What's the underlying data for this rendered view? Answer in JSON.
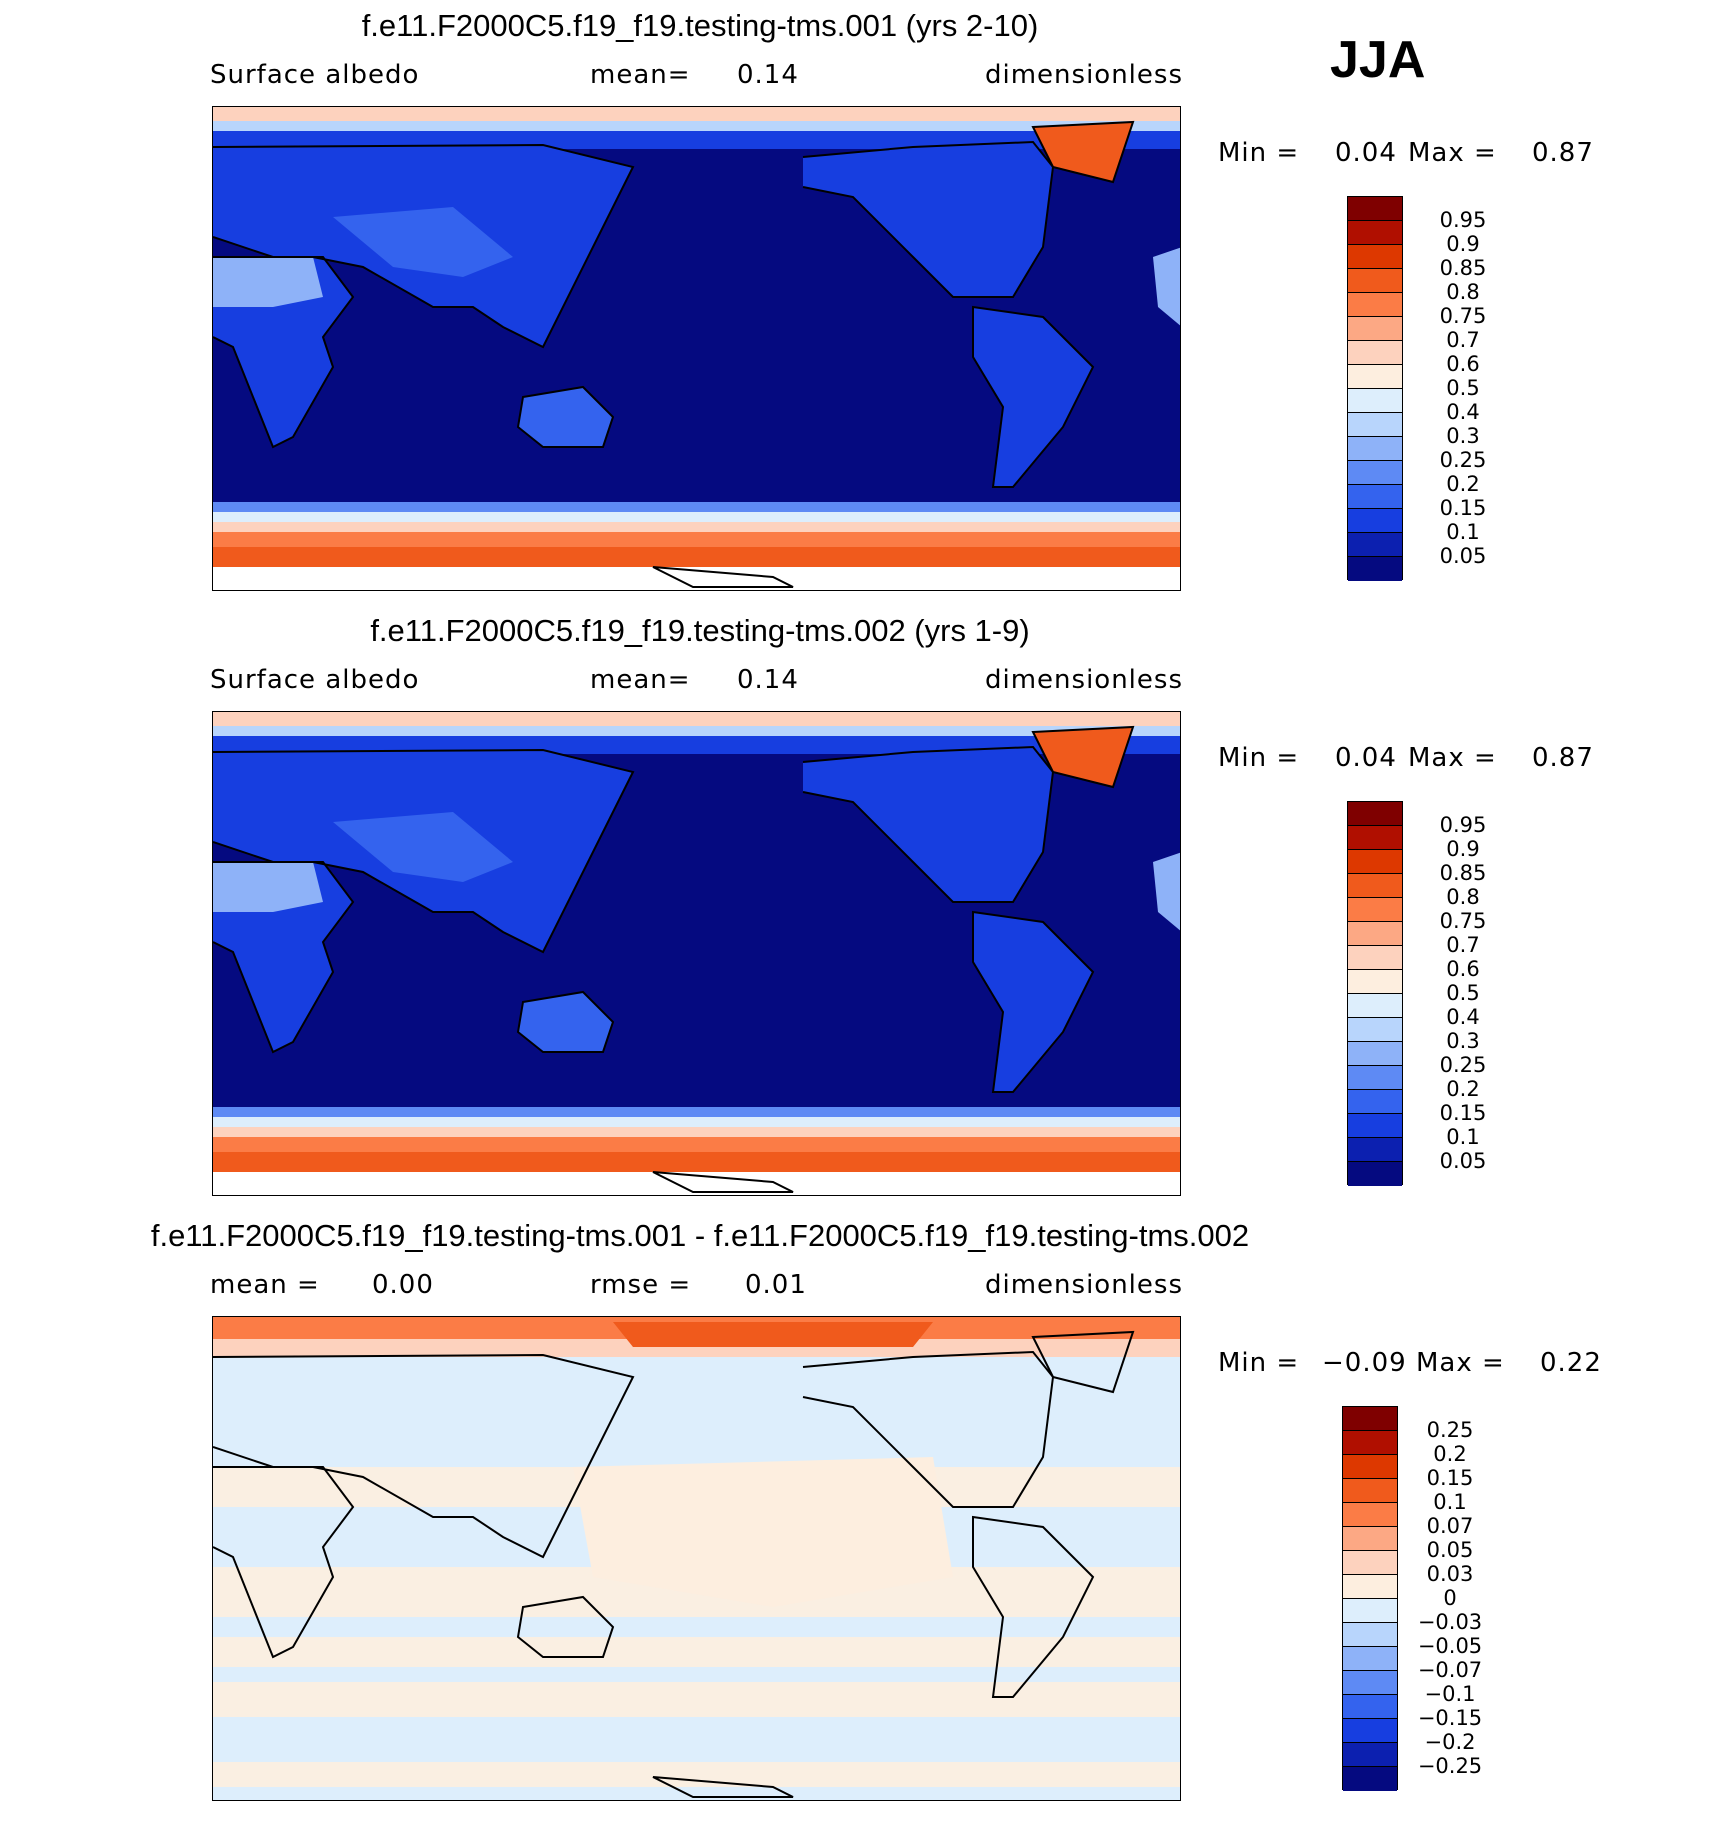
{
  "season": "JJA",
  "panels": [
    {
      "title": "f.e11.F2000C5.f19_f19.testing-tms.001 (yrs 2-10)",
      "left_label": "Surface  albedo",
      "mid_label": "mean=",
      "mid_value": "0.14",
      "units": "dimensionless",
      "min_label": "Min  =",
      "min_value": "0.04",
      "max_label": "Max  =",
      "max_value": "0.87",
      "colorbar": {
        "colors": [
          "#7f0000",
          "#b00f00",
          "#dd3800",
          "#f05a1c",
          "#fb7c46",
          "#fca884",
          "#fdd2be",
          "#fdeedf",
          "#ddeefc",
          "#b8d5fc",
          "#8eb2f8",
          "#5e8af4",
          "#3463ee",
          "#173ee0",
          "#0c20b0",
          "#050a80"
        ],
        "ticks": [
          "0.95",
          "0.9",
          "0.85",
          "0.8",
          "0.75",
          "0.7",
          "0.6",
          "0.5",
          "0.4",
          "0.3",
          "0.25",
          "0.2",
          "0.15",
          "0.1",
          "0.05"
        ]
      }
    },
    {
      "title": "f.e11.F2000C5.f19_f19.testing-tms.002 (yrs 1-9)",
      "left_label": "Surface  albedo",
      "mid_label": "mean=",
      "mid_value": "0.14",
      "units": "dimensionless",
      "min_label": "Min  =",
      "min_value": "0.04",
      "max_label": "Max  =",
      "max_value": "0.87",
      "colorbar": {
        "colors": [
          "#7f0000",
          "#b00f00",
          "#dd3800",
          "#f05a1c",
          "#fb7c46",
          "#fca884",
          "#fdd2be",
          "#fdeedf",
          "#ddeefc",
          "#b8d5fc",
          "#8eb2f8",
          "#5e8af4",
          "#3463ee",
          "#173ee0",
          "#0c20b0",
          "#050a80"
        ],
        "ticks": [
          "0.95",
          "0.9",
          "0.85",
          "0.8",
          "0.75",
          "0.7",
          "0.6",
          "0.5",
          "0.4",
          "0.3",
          "0.25",
          "0.2",
          "0.15",
          "0.1",
          "0.05"
        ]
      }
    },
    {
      "title": "f.e11.F2000C5.f19_f19.testing-tms.001 - f.e11.F2000C5.f19_f19.testing-tms.002",
      "left_label": "mean =",
      "left_value": "0.00",
      "mid_label": "rmse =",
      "mid_value": "0.01",
      "units": "dimensionless",
      "min_label": "Min  =",
      "min_value": "−0.09",
      "max_label": "Max  =",
      "max_value": "0.22",
      "colorbar": {
        "colors": [
          "#7f0000",
          "#b00f00",
          "#dd3800",
          "#f05a1c",
          "#fb7c46",
          "#fca884",
          "#fdd2be",
          "#fdeedf",
          "#ddeefc",
          "#b8d5fc",
          "#8eb2f8",
          "#5e8af4",
          "#3463ee",
          "#173ee0",
          "#0c20b0",
          "#050a80"
        ],
        "ticks": [
          "0.25",
          "0.2",
          "0.15",
          "0.1",
          "0.07",
          "0.05",
          "0.03",
          "0",
          "−0.03",
          "−0.05",
          "−0.07",
          "−0.1",
          "−0.15",
          "−0.2",
          "−0.25"
        ]
      }
    }
  ]
}
